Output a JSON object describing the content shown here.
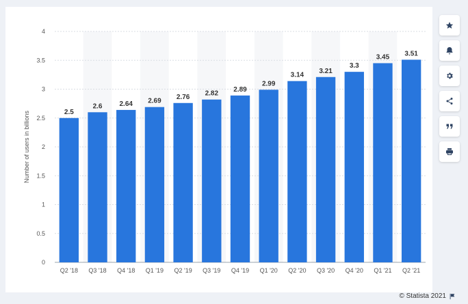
{
  "toolbar": {
    "buttons": [
      {
        "icon": "star-icon"
      },
      {
        "icon": "bell-icon"
      },
      {
        "icon": "gear-icon"
      },
      {
        "icon": "share-icon"
      },
      {
        "icon": "quote-icon"
      },
      {
        "icon": "print-icon"
      }
    ]
  },
  "footer": {
    "copyright": "© Statista 2021",
    "flag_icon": "flag-icon"
  },
  "colors": {
    "bar": "#2876dd",
    "grid": "#d9dde3",
    "band": "#f6f7f9"
  },
  "chart_data": {
    "type": "bar",
    "categories": [
      "Q2 '18",
      "Q3 '18",
      "Q4 '18",
      "Q1 '19",
      "Q2 '19",
      "Q3 '19",
      "Q4 '19",
      "Q1 '20",
      "Q2 '20",
      "Q3 '20",
      "Q4 '20",
      "Q1 '21",
      "Q2 '21"
    ],
    "values": [
      2.5,
      2.6,
      2.64,
      2.69,
      2.76,
      2.82,
      2.89,
      2.99,
      3.14,
      3.21,
      3.3,
      3.45,
      3.51
    ],
    "value_labels": [
      "2.5",
      "2.6",
      "2.64",
      "2.69",
      "2.76",
      "2.82",
      "2.89",
      "2.99",
      "3.14",
      "3.21",
      "3.3",
      "3.45",
      "3.51"
    ],
    "ylabel": "Number of users in billions",
    "ylim": [
      0,
      4
    ],
    "yticks": [
      "0",
      "0.5",
      "1",
      "1.5",
      "2",
      "2.5",
      "3",
      "3.5",
      "4"
    ],
    "grid": true,
    "legend": "none"
  }
}
